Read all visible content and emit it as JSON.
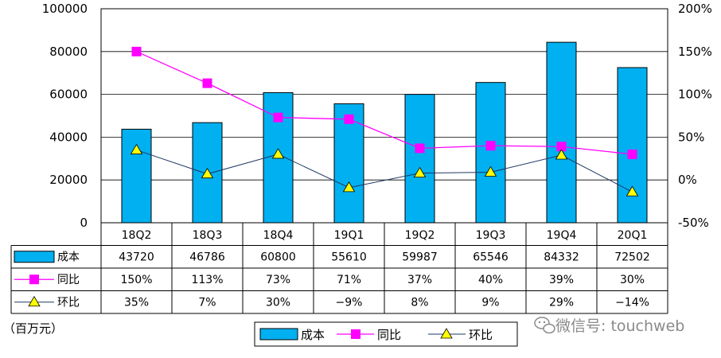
{
  "chart_data": {
    "type": "bar",
    "categories": [
      "18Q2",
      "18Q3",
      "18Q4",
      "19Q1",
      "19Q2",
      "19Q3",
      "19Q4",
      "20Q1"
    ],
    "series": [
      {
        "name": "成本",
        "type": "bar",
        "axis": "left",
        "values": [
          43720,
          46786,
          60800,
          55610,
          59987,
          65546,
          84332,
          72502
        ],
        "labels": [
          "43720",
          "46786",
          "60800",
          "55610",
          "59987",
          "65546",
          "84332",
          "72502"
        ],
        "color": "#00b0f0"
      },
      {
        "name": "同比",
        "type": "line",
        "axis": "right",
        "marker": "square",
        "values": [
          150,
          113,
          73,
          71,
          37,
          40,
          39,
          30
        ],
        "labels": [
          "150%",
          "113%",
          "73%",
          "71%",
          "37%",
          "40%",
          "39%",
          "30%"
        ],
        "color": "#ff00ff"
      },
      {
        "name": "环比",
        "type": "line",
        "axis": "right",
        "marker": "triangle",
        "values": [
          35,
          7,
          30,
          -9,
          8,
          9,
          29,
          -14
        ],
        "labels": [
          "35%",
          "7%",
          "30%",
          "−9%",
          "8%",
          "9%",
          "29%",
          "−14%"
        ],
        "color": "#1f3864"
      }
    ],
    "ylim_left": [
      0,
      100000
    ],
    "yticks_left": [
      "100000",
      "80000",
      "60000",
      "40000",
      "20000",
      "0"
    ],
    "ylim_right": [
      -50,
      200
    ],
    "yticks_right": [
      "200%",
      "150%",
      "100%",
      "50%",
      "0%",
      "-50%"
    ],
    "unit_label": "（百万元）",
    "legend_position": "bottom-center",
    "data_table": true
  },
  "watermark": "微信号: touchweb"
}
